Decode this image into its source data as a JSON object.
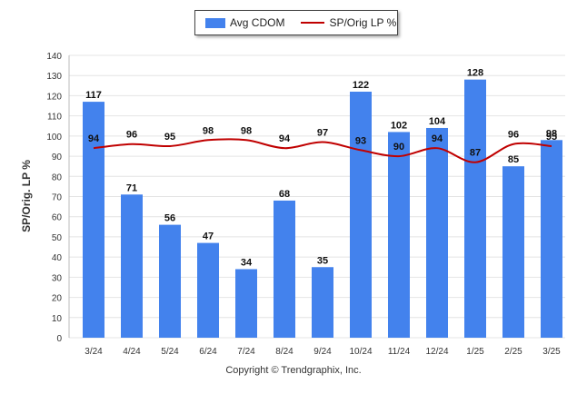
{
  "chart_data": {
    "type": "bar",
    "categories": [
      "3/24",
      "4/24",
      "5/24",
      "6/24",
      "7/24",
      "8/24",
      "9/24",
      "10/24",
      "11/24",
      "12/24",
      "1/25",
      "2/25",
      "3/25"
    ],
    "series": [
      {
        "name": "Avg CDOM",
        "type": "bar",
        "values": [
          117,
          71,
          56,
          47,
          34,
          68,
          35,
          122,
          102,
          104,
          128,
          85,
          98
        ]
      },
      {
        "name": "SP/Orig LP %",
        "type": "line",
        "values": [
          94,
          96,
          95,
          98,
          98,
          94,
          97,
          93,
          90,
          94,
          87,
          96,
          95
        ]
      }
    ],
    "ylabel": "SP/Orig. LP %",
    "xlabel": "",
    "ylim": [
      0,
      140
    ],
    "yticks": [
      0,
      10,
      20,
      30,
      40,
      50,
      60,
      70,
      80,
      90,
      100,
      110,
      120,
      130,
      140
    ],
    "grid": true,
    "legend_position": "top-center",
    "colors": {
      "bar": "#4382ed",
      "line": "#c00000"
    }
  },
  "footer": {
    "copyright": "Copyright © Trendgraphix, Inc."
  }
}
